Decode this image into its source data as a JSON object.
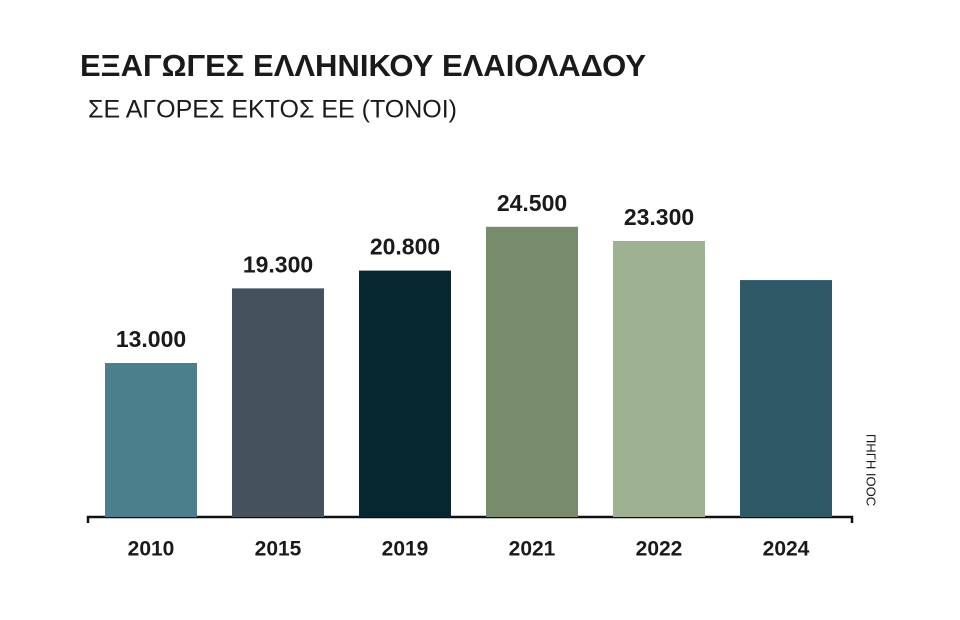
{
  "chart_data": {
    "type": "bar",
    "title": "ΕΞΑΓΩΓΕΣ ΕΛΛΗΝΙΚΟΥ ΕΛΑΙΟΛΑΔΟΥ",
    "subtitle": "ΣΕ ΑΓΟΡΕΣ ΕΚΤΟΣ ΕΕ (ΤΟΝΟΙ)",
    "source": "ΠΗΓΗ IOOC",
    "categories": [
      "2010",
      "2015",
      "2019",
      "2021",
      "2022",
      "2024"
    ],
    "values": [
      13000,
      19300,
      20800,
      24500,
      23300,
      20000
    ],
    "value_labels": [
      "13.000",
      "19.300",
      "20.800",
      "24.500",
      "23.300",
      null
    ],
    "colors": [
      "#4a7f8c",
      "#43525c",
      "#062730",
      "#768c6a",
      "#9eb190",
      "#2f5966"
    ],
    "ylim": [
      0,
      26000
    ]
  }
}
